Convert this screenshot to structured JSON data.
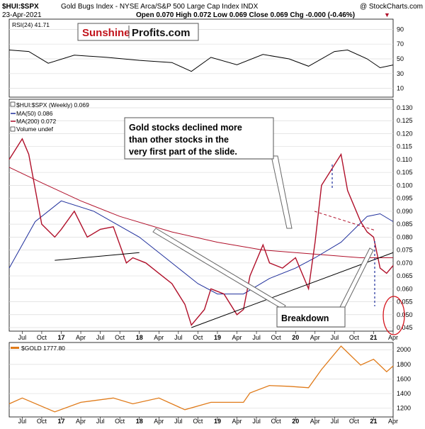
{
  "header": {
    "symbol": "$HUI:$SPX",
    "description": "Gold Bugs Index - NYSE Arca/S&P 500 Large Cap Index  INDX",
    "credit": "@ StockCharts.com",
    "date": "23-Apr-2021",
    "ohlc": "Open 0.070  High 0.072  Low 0.069  Close 0.069  Chg -0.000 (-0.46%)",
    "down_marker": "▼"
  },
  "logo": {
    "part1": "Sunshine",
    "part2": "Profits.com"
  },
  "rsi_panel": {
    "label": "RSI(24) 41.71",
    "ticks": [
      "90",
      "70",
      "50",
      "30",
      "10"
    ],
    "tick_values": [
      90,
      70,
      50,
      30,
      10
    ]
  },
  "price_panel": {
    "legend": [
      "$HUI:$SPX (Weekly) 0.069",
      "MA(50) 0.086",
      "MA(200) 0.072",
      "Volume undef"
    ],
    "legend_colors": [
      "#000000",
      "#1f2f9c",
      "#b0102a",
      "#000000"
    ],
    "ticks": [
      "0.130",
      "0.125",
      "0.120",
      "0.115",
      "0.110",
      "0.105",
      "0.100",
      "0.095",
      "0.090",
      "0.085",
      "0.080",
      "0.075",
      "0.070",
      "0.065",
      "0.060",
      "0.055",
      "0.050",
      "0.045"
    ],
    "tick_values": [
      0.13,
      0.125,
      0.12,
      0.115,
      0.11,
      0.105,
      0.1,
      0.095,
      0.09,
      0.085,
      0.08,
      0.075,
      0.07,
      0.065,
      0.06,
      0.055,
      0.05,
      0.045
    ]
  },
  "gold_panel": {
    "label": "$GOLD 1777.80",
    "ticks": [
      "2000",
      "1800",
      "1600",
      "1400",
      "1200"
    ],
    "tick_values": [
      2000,
      1800,
      1600,
      1400,
      1200
    ]
  },
  "x_axis": {
    "labels": [
      "Jul",
      "Oct",
      "17",
      "Apr",
      "Jul",
      "Oct",
      "18",
      "Apr",
      "Jul",
      "Oct",
      "19",
      "Apr",
      "Jul",
      "Oct",
      "20",
      "Apr",
      "Jul",
      "Oct",
      "21",
      "Apr"
    ],
    "bold": [
      false,
      false,
      true,
      false,
      false,
      false,
      true,
      false,
      false,
      false,
      true,
      false,
      false,
      false,
      true,
      false,
      false,
      false,
      true,
      false
    ]
  },
  "annotations": {
    "callout_lines": [
      "Gold stocks declined more",
      "than other stocks in the",
      "very first part of the slide."
    ],
    "breakdown": "Breakdown"
  },
  "colors": {
    "price": "#b0102a",
    "ma50": "#1f2f9c",
    "ma200": "#b0102a",
    "gold": "#e07b1a",
    "grid": "#d8d8d8"
  },
  "chart_data": {
    "type": "line",
    "x_range": [
      "2016-05",
      "2021-04"
    ],
    "series": [
      {
        "name": "$HUI:$SPX (Weekly)",
        "x": [
          "2016-05",
          "2016-07",
          "2016-08",
          "2016-10",
          "2016-12",
          "2017-01",
          "2017-03",
          "2017-05",
          "2017-07",
          "2017-09",
          "2017-11",
          "2017-12",
          "2018-02",
          "2018-04",
          "2018-06",
          "2018-08",
          "2018-09",
          "2018-11",
          "2018-12",
          "2019-02",
          "2019-04",
          "2019-05",
          "2019-06",
          "2019-08",
          "2019-09",
          "2019-11",
          "2020-01",
          "2020-03",
          "2020-04",
          "2020-05",
          "2020-07",
          "2020-08",
          "2020-09",
          "2020-11",
          "2020-12",
          "2021-01",
          "2021-02",
          "2021-03",
          "2021-04"
        ],
        "values": [
          0.11,
          0.118,
          0.112,
          0.085,
          0.08,
          0.083,
          0.09,
          0.08,
          0.083,
          0.084,
          0.07,
          0.072,
          0.07,
          0.066,
          0.062,
          0.054,
          0.046,
          0.052,
          0.06,
          0.058,
          0.05,
          0.052,
          0.065,
          0.077,
          0.07,
          0.068,
          0.072,
          0.06,
          0.078,
          0.1,
          0.108,
          0.112,
          0.098,
          0.086,
          0.082,
          0.08,
          0.068,
          0.066,
          0.069
        ]
      },
      {
        "name": "MA(50)",
        "x": [
          "2016-05",
          "2016-09",
          "2017-01",
          "2017-06",
          "2018-01",
          "2018-05",
          "2018-10",
          "2019-01",
          "2019-05",
          "2019-09",
          "2020-01",
          "2020-04",
          "2020-08",
          "2020-12",
          "2021-02",
          "2021-04"
        ],
        "values": [
          0.068,
          0.086,
          0.094,
          0.09,
          0.08,
          0.072,
          0.062,
          0.058,
          0.058,
          0.064,
          0.068,
          0.072,
          0.078,
          0.088,
          0.089,
          0.086
        ]
      },
      {
        "name": "MA(200)",
        "x": [
          "2016-05",
          "2016-10",
          "2017-04",
          "2017-10",
          "2018-06",
          "2019-01",
          "2019-08",
          "2020-01",
          "2020-06",
          "2020-11",
          "2021-02",
          "2021-04"
        ],
        "values": [
          0.107,
          0.101,
          0.094,
          0.088,
          0.082,
          0.078,
          0.075,
          0.074,
          0.073,
          0.072,
          0.072,
          0.072
        ]
      },
      {
        "name": "RSI(24)",
        "x": [
          "2016-05",
          "2016-08",
          "2016-11",
          "2017-03",
          "2017-08",
          "2018-01",
          "2018-06",
          "2018-09",
          "2018-12",
          "2019-04",
          "2019-08",
          "2019-12",
          "2020-03",
          "2020-07",
          "2020-09",
          "2020-12",
          "2021-02",
          "2021-04"
        ],
        "values": [
          62,
          60,
          44,
          55,
          52,
          48,
          45,
          33,
          52,
          42,
          56,
          50,
          40,
          60,
          62,
          50,
          38,
          41.71
        ]
      },
      {
        "name": "$GOLD",
        "x": [
          "2016-05",
          "2016-07",
          "2016-12",
          "2017-04",
          "2017-09",
          "2017-12",
          "2018-04",
          "2018-08",
          "2018-12",
          "2019-05",
          "2019-06",
          "2019-09",
          "2019-12",
          "2020-03",
          "2020-05",
          "2020-08",
          "2020-11",
          "2021-01",
          "2021-03",
          "2021-04"
        ],
        "values": [
          1260,
          1340,
          1150,
          1280,
          1340,
          1260,
          1340,
          1180,
          1280,
          1280,
          1410,
          1510,
          1500,
          1480,
          1730,
          2050,
          1790,
          1870,
          1700,
          1777.8
        ]
      }
    ],
    "annotation_lines": [
      {
        "name": "support-2016-2018",
        "from": [
          "2016-12",
          0.071
        ],
        "to": [
          "2018-01",
          0.074
        ]
      },
      {
        "name": "rising-support",
        "from": [
          "2018-09",
          0.045
        ],
        "to": [
          "2021-04",
          0.074
        ]
      }
    ]
  }
}
